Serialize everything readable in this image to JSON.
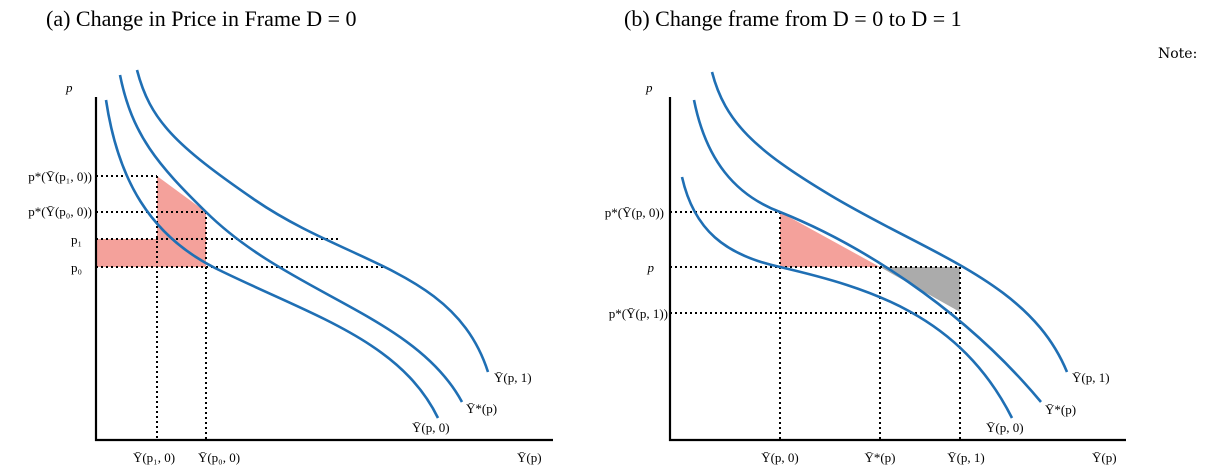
{
  "panel_a": {
    "title": "(a) Change in Price in Frame D = 0",
    "y_axis_label": "p",
    "x_axis_label": "Ȳ(p)",
    "y_tick_labels": [
      "p*(Ȳ(p₁, 0))",
      "p*(Ȳ(p₀, 0))",
      "p₁",
      "p₀"
    ],
    "x_tick_labels": [
      "Ȳ(p₁, 0)",
      "Ȳ(p₀, 0)"
    ],
    "curve_labels": [
      "Ȳ(p, 1)",
      "Ȳ*(p)",
      "Ȳ(p, 0)"
    ]
  },
  "panel_b": {
    "title": "(b) Change frame from D = 0 to D = 1",
    "y_axis_label": "p",
    "x_axis_label": "Ȳ(p)",
    "y_tick_labels": [
      "p*(Ȳ(p, 0))",
      "p",
      "p*(Ȳ(p, 1))"
    ],
    "x_tick_labels": [
      "Ȳ(p, 0)",
      "Ȳ*(p)",
      "Ȳ(p, 1)"
    ],
    "curve_labels": [
      "Ȳ(p, 1)",
      "Ȳ*(p)",
      "Ȳ(p, 0)"
    ]
  },
  "note": "Note:",
  "colors": {
    "curve": "#1f6fb4",
    "pink_fill": "#f4a19b",
    "gray_fill": "#ababab"
  }
}
